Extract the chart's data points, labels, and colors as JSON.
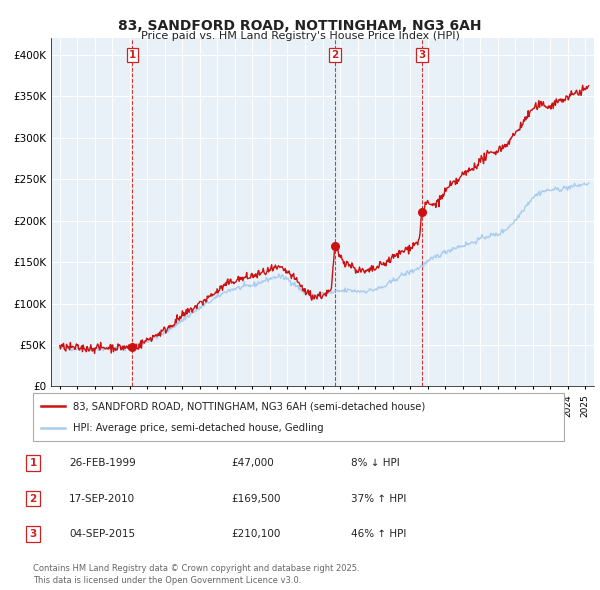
{
  "title": "83, SANDFORD ROAD, NOTTINGHAM, NG3 6AH",
  "subtitle": "Price paid vs. HM Land Registry's House Price Index (HPI)",
  "legend_line1": "83, SANDFORD ROAD, NOTTINGHAM, NG3 6AH (semi-detached house)",
  "legend_line2": "HPI: Average price, semi-detached house, Gedling",
  "hpi_color": "#aaccee",
  "price_color": "#cc1111",
  "marker_color": "#cc1111",
  "background_chart": "#e8f0f8",
  "grid_color": "#ffffff",
  "sales": [
    {
      "label": "1",
      "price": 47000,
      "x": 1999.15
    },
    {
      "label": "2",
      "price": 169500,
      "x": 2010.71
    },
    {
      "label": "3",
      "price": 210100,
      "x": 2015.67
    }
  ],
  "sale_display": [
    {
      "num": "1",
      "date_str": "26-FEB-1999",
      "price_str": "£47,000",
      "pct_str": "8% ↓ HPI"
    },
    {
      "num": "2",
      "date_str": "17-SEP-2010",
      "price_str": "£169,500",
      "pct_str": "37% ↑ HPI"
    },
    {
      "num": "3",
      "date_str": "04-SEP-2015",
      "price_str": "£210,100",
      "pct_str": "46% ↑ HPI"
    }
  ],
  "ylabel_ticks": [
    0,
    50000,
    100000,
    150000,
    200000,
    250000,
    300000,
    350000,
    400000
  ],
  "ylabel_labels": [
    "£0",
    "£50K",
    "£100K",
    "£150K",
    "£200K",
    "£250K",
    "£300K",
    "£350K",
    "£400K"
  ],
  "xlim": [
    1994.5,
    2025.5
  ],
  "ylim": [
    0,
    420000
  ],
  "footer": "Contains HM Land Registry data © Crown copyright and database right 2025.\nThis data is licensed under the Open Government Licence v3.0."
}
